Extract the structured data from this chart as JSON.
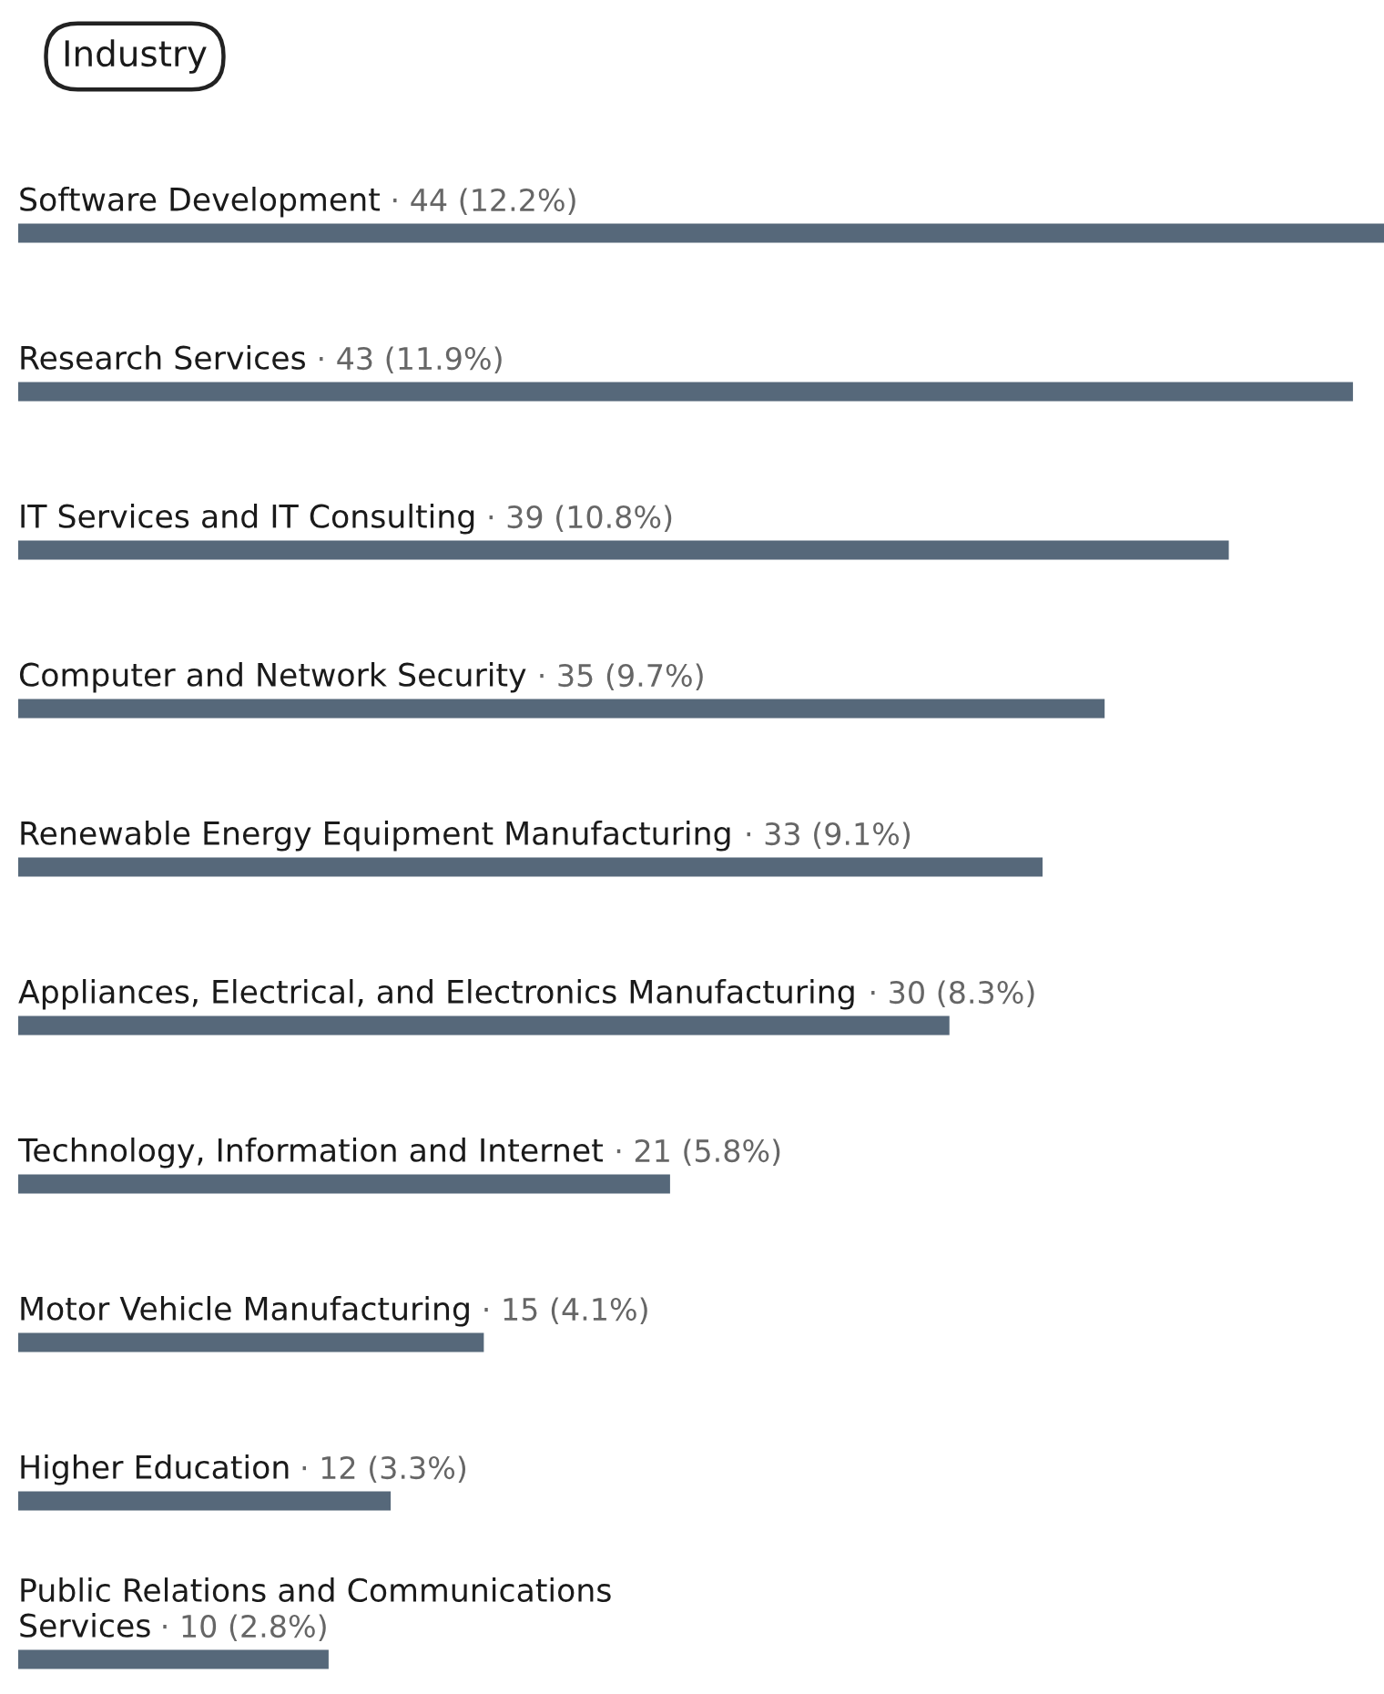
{
  "chart_data": {
    "type": "bar",
    "orientation": "horizontal",
    "title": "Industry",
    "categories": [
      "Software Development",
      "Research Services",
      "IT Services and IT Consulting",
      "Computer and Network Security",
      "Renewable Energy Equipment Manufacturing",
      "Appliances, Electrical, and Electronics Manufacturing",
      "Technology, Information and Internet",
      "Motor Vehicle Manufacturing",
      "Higher Education",
      "Public Relations and Communications Services"
    ],
    "values": [
      44,
      43,
      39,
      35,
      33,
      30,
      21,
      15,
      12,
      10
    ],
    "value_labels": [
      "· 44 (12.2%)",
      "· 43 (11.9%)",
      "· 39 (10.8%)",
      "· 35 (9.7%)",
      "· 33 (9.1%)",
      "· 30 (8.3%)",
      "· 21 (5.8%)",
      "· 15 (4.1%)",
      "· 12 (3.3%)",
      "· 10 (2.8%)"
    ],
    "color": "#56687a"
  }
}
